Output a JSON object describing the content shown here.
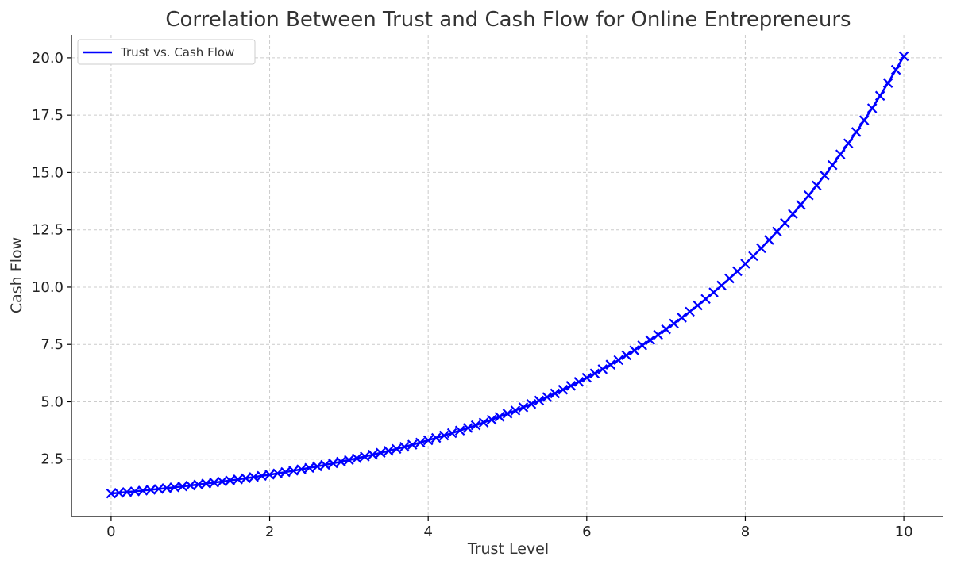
{
  "chart_data": {
    "type": "line",
    "title": "Correlation Between Trust and Cash Flow for Online Entrepreneurs",
    "xlabel": "Trust Level",
    "ylabel": "Cash Flow",
    "xlim": [
      -0.5,
      10.5
    ],
    "ylim": [
      0,
      21
    ],
    "xticks": [
      0,
      2,
      4,
      6,
      8,
      10
    ],
    "xtick_labels": [
      "0",
      "2",
      "4",
      "6",
      "8",
      "10"
    ],
    "yticks": [
      2.5,
      5.0,
      7.5,
      10.0,
      12.5,
      15.0,
      17.5,
      20.0
    ],
    "ytick_labels": [
      "2.5",
      "5.0",
      "7.5",
      "10.0",
      "12.5",
      "15.0",
      "17.5",
      "20.0"
    ],
    "grid": true,
    "legend_position": "top-left",
    "series": [
      {
        "name": "Trust vs. Cash Flow",
        "color": "#0000ff",
        "marker": "x",
        "x": [
          0.0,
          0.1,
          0.2,
          0.3,
          0.4,
          0.5,
          0.6,
          0.7,
          0.8,
          0.9,
          1.0,
          1.1,
          1.2,
          1.3,
          1.4,
          1.5,
          1.6,
          1.7,
          1.8,
          1.9,
          2.0,
          2.1,
          2.2,
          2.3,
          2.4,
          2.5,
          2.6,
          2.7,
          2.8,
          2.9,
          3.0,
          3.1,
          3.2,
          3.3,
          3.4,
          3.5,
          3.6,
          3.7,
          3.8,
          3.9,
          4.0,
          4.1,
          4.2,
          4.3,
          4.4,
          4.5,
          4.6,
          4.7,
          4.8,
          4.9,
          5.0,
          5.1,
          5.2,
          5.3,
          5.4,
          5.5,
          5.6,
          5.7,
          5.8,
          5.9,
          6.0,
          6.1,
          6.2,
          6.3,
          6.4,
          6.5,
          6.6,
          6.7,
          6.8,
          6.9,
          7.0,
          7.1,
          7.2,
          7.3,
          7.4,
          7.5,
          7.6,
          7.7,
          7.8,
          7.9,
          8.0,
          8.1,
          8.2,
          8.3,
          8.4,
          8.5,
          8.6,
          8.7,
          8.8,
          8.9,
          9.0,
          9.1,
          9.2,
          9.3,
          9.4,
          9.5,
          9.6,
          9.7,
          9.8,
          9.9,
          10.0
        ],
        "y": [
          1.0,
          1.03,
          1.062,
          1.094,
          1.127,
          1.162,
          1.197,
          1.234,
          1.271,
          1.31,
          1.35,
          1.391,
          1.434,
          1.477,
          1.522,
          1.568,
          1.616,
          1.666,
          1.716,
          1.769,
          1.822,
          1.878,
          1.935,
          1.994,
          2.055,
          2.117,
          2.182,
          2.248,
          2.317,
          2.387,
          2.46,
          2.535,
          2.612,
          2.692,
          2.774,
          2.858,
          2.945,
          3.035,
          3.127,
          3.222,
          3.321,
          3.422,
          3.526,
          3.633,
          3.744,
          3.858,
          3.975,
          4.096,
          4.221,
          4.349,
          4.482,
          4.618,
          4.759,
          4.904,
          5.053,
          5.207,
          5.365,
          5.528,
          5.697,
          5.87,
          6.049,
          6.233,
          6.422,
          6.618,
          6.819,
          7.027,
          7.241,
          7.461,
          7.688,
          7.922,
          8.163,
          8.412,
          8.668,
          8.931,
          9.203,
          9.484,
          9.772,
          10.07,
          10.376,
          10.692,
          11.018,
          11.353,
          11.698,
          12.055,
          12.421,
          12.799,
          13.189,
          13.59,
          14.004,
          14.43,
          14.869,
          15.322,
          15.788,
          16.269,
          16.764,
          17.274,
          17.8,
          18.342,
          18.9,
          19.475,
          20.068
        ]
      }
    ]
  }
}
